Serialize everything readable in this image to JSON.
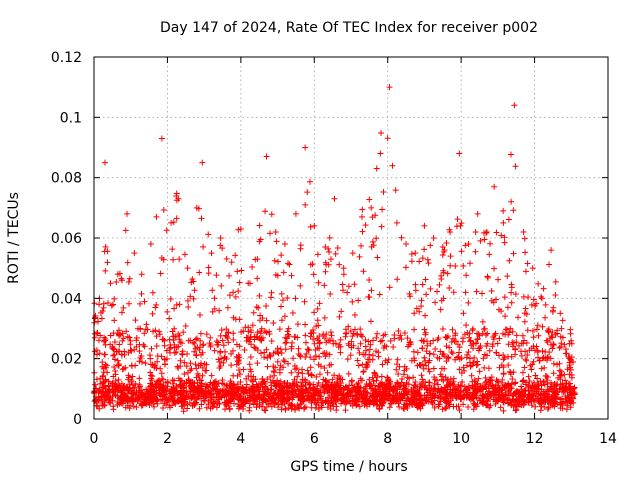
{
  "chart_data": {
    "type": "scatter",
    "title": "Day 147 of 2024, Rate Of TEC Index for receiver p002",
    "xlabel": "GPS time / hours",
    "ylabel": "ROTI / TECUs",
    "xlim": [
      0,
      14
    ],
    "ylim": [
      0,
      0.12
    ],
    "xticks": [
      0,
      2,
      4,
      6,
      8,
      10,
      12,
      14
    ],
    "xtick_labels": [
      "0",
      "2",
      "4",
      "6",
      "8",
      "10",
      "12",
      "14"
    ],
    "yticks": [
      0,
      0.02,
      0.04,
      0.06,
      0.08,
      0.1,
      0.12
    ],
    "ytick_labels": [
      "0",
      "0.02",
      "0.04",
      "0.06",
      "0.08",
      "0.1",
      "0.12"
    ],
    "grid": true,
    "marker": "+",
    "marker_color": "#ff0000",
    "series": [
      {
        "name": "ROTI",
        "data_extent": {
          "x_min": 0.0,
          "x_max": 13.1
        },
        "base_level": 0.006,
        "dense_band_max": 0.03,
        "peaks": [
          [
            0.15,
            0.04
          ],
          [
            0.3,
            0.085
          ],
          [
            0.45,
            0.045
          ],
          [
            0.65,
            0.048
          ],
          [
            0.9,
            0.068
          ],
          [
            1.1,
            0.055
          ],
          [
            1.3,
            0.048
          ],
          [
            1.55,
            0.058
          ],
          [
            1.7,
            0.067
          ],
          [
            1.85,
            0.093
          ],
          [
            2.1,
            0.065
          ],
          [
            2.3,
            0.073
          ],
          [
            2.55,
            0.05
          ],
          [
            2.8,
            0.07
          ],
          [
            2.95,
            0.085
          ],
          [
            3.2,
            0.055
          ],
          [
            3.45,
            0.06
          ],
          [
            3.75,
            0.052
          ],
          [
            4.0,
            0.063
          ],
          [
            4.2,
            0.045
          ],
          [
            4.45,
            0.053
          ],
          [
            4.7,
            0.087
          ],
          [
            4.95,
            0.062
          ],
          [
            5.2,
            0.058
          ],
          [
            5.5,
            0.068
          ],
          [
            5.75,
            0.09
          ],
          [
            6.0,
            0.064
          ],
          [
            6.3,
            0.057
          ],
          [
            6.55,
            0.073
          ],
          [
            6.8,
            0.05
          ],
          [
            7.05,
            0.055
          ],
          [
            7.3,
            0.067
          ],
          [
            7.55,
            0.07
          ],
          [
            7.8,
            0.088
          ],
          [
            8.05,
            0.11
          ],
          [
            8.25,
            0.065
          ],
          [
            8.5,
            0.058
          ],
          [
            8.75,
            0.055
          ],
          [
            9.0,
            0.064
          ],
          [
            9.25,
            0.06
          ],
          [
            9.5,
            0.057
          ],
          [
            9.7,
            0.062
          ],
          [
            9.95,
            0.088
          ],
          [
            10.2,
            0.058
          ],
          [
            10.45,
            0.068
          ],
          [
            10.7,
            0.062
          ],
          [
            10.9,
            0.077
          ],
          [
            11.15,
            0.065
          ],
          [
            11.45,
            0.104
          ],
          [
            11.7,
            0.062
          ],
          [
            11.95,
            0.05
          ],
          [
            12.2,
            0.04
          ],
          [
            12.45,
            0.056
          ],
          [
            12.7,
            0.035
          ],
          [
            12.95,
            0.025
          ]
        ]
      }
    ]
  }
}
